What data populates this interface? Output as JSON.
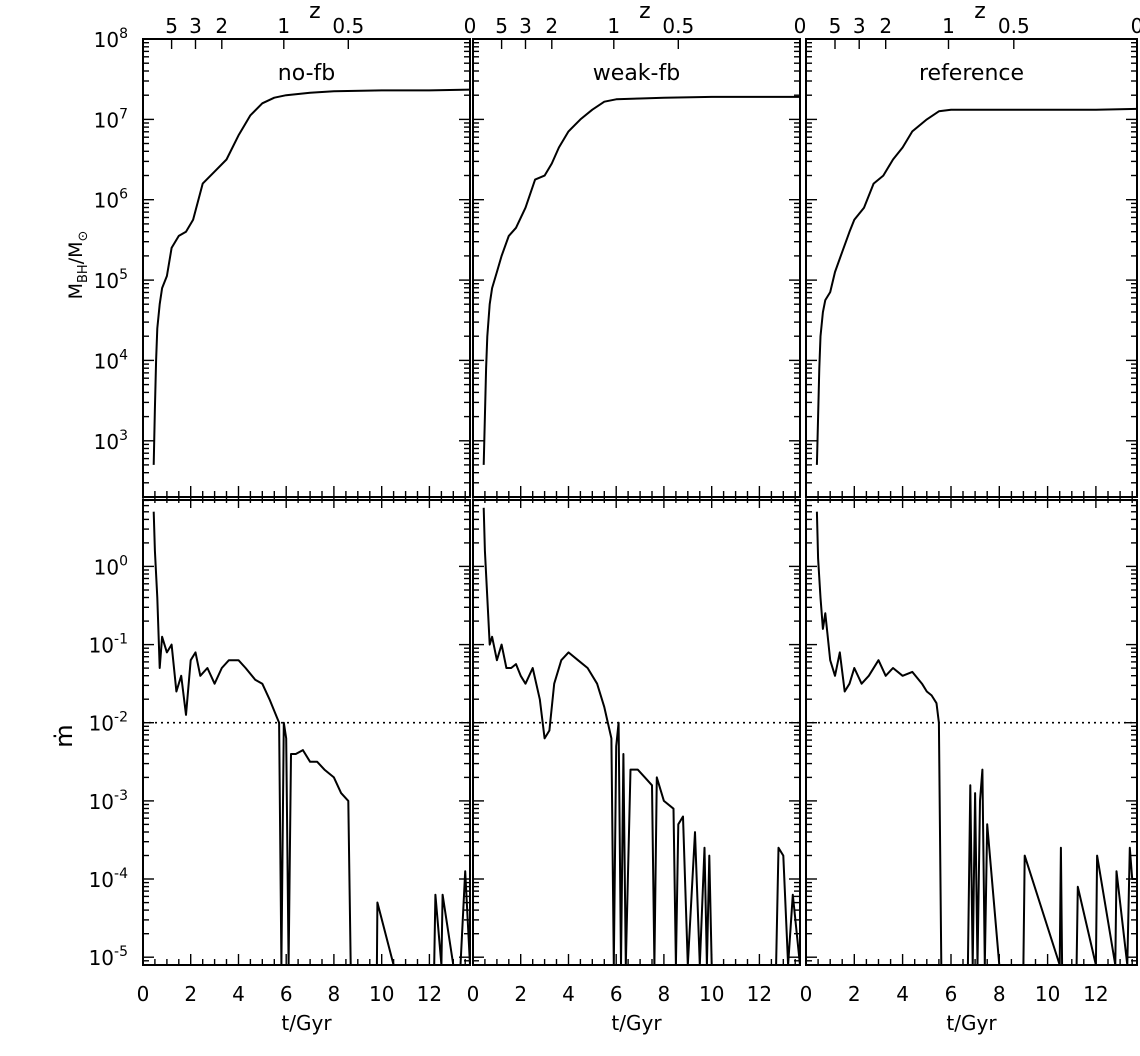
{
  "chart_data": {
    "type": "line",
    "panels": [
      {
        "title": "no-fb"
      },
      {
        "title": "weak-fb"
      },
      {
        "title": "reference"
      }
    ],
    "x_axis": {
      "label": "t/Gyr",
      "range": [
        0,
        13.7
      ],
      "tick_labels": [
        "0",
        "2",
        "4",
        "6",
        "8",
        "10",
        "12"
      ]
    },
    "top_axis": {
      "label": "z",
      "tick_labels": [
        "5",
        "3",
        "2",
        "1",
        "0.5",
        "0"
      ]
    },
    "rows": [
      {
        "ylabel_base": "M",
        "ylabel_sub": "BH",
        "ylabel_mid": "/M",
        "ylabel_sub2": "⊙",
        "yscale": "log",
        "ylim_log10": [
          2.3,
          8
        ],
        "tick_label_base": "10",
        "tick_exponents": [
          "3",
          "4",
          "5",
          "6",
          "7",
          "8"
        ],
        "series": [
          {
            "x": [
              0.45,
              0.5,
              0.55,
              0.6,
              0.7,
              0.8,
              1.0,
              1.2,
              1.5,
              1.8,
              2.1,
              2.5,
              3.0,
              3.5,
              4.0,
              4.5,
              5.0,
              5.5,
              6.0,
              7.0,
              8.0,
              10.0,
              12.0,
              13.7
            ],
            "y": [
              2.7,
              3.4,
              4.0,
              4.4,
              4.7,
              4.9,
              5.05,
              5.4,
              5.55,
              5.6,
              5.75,
              6.2,
              6.35,
              6.5,
              6.8,
              7.05,
              7.2,
              7.27,
              7.3,
              7.33,
              7.35,
              7.36,
              7.36,
              7.37
            ]
          },
          {
            "x": [
              0.45,
              0.5,
              0.55,
              0.6,
              0.7,
              0.8,
              1.0,
              1.2,
              1.5,
              1.8,
              2.2,
              2.6,
              3.0,
              3.3,
              3.6,
              4.0,
              4.5,
              5.0,
              5.5,
              6.0,
              7.0,
              8.0,
              10.0,
              12.0,
              13.7
            ],
            "y": [
              2.7,
              3.3,
              3.9,
              4.3,
              4.7,
              4.9,
              5.1,
              5.3,
              5.55,
              5.65,
              5.9,
              6.25,
              6.3,
              6.45,
              6.65,
              6.85,
              7.0,
              7.12,
              7.22,
              7.25,
              7.26,
              7.27,
              7.28,
              7.28,
              7.28
            ]
          },
          {
            "x": [
              0.45,
              0.5,
              0.55,
              0.6,
              0.7,
              0.8,
              1.0,
              1.2,
              1.5,
              1.8,
              2.0,
              2.4,
              2.8,
              3.2,
              3.6,
              4.0,
              4.4,
              5.0,
              5.5,
              6.0,
              8.0,
              10.0,
              12.0,
              13.7
            ],
            "y": [
              2.7,
              3.3,
              3.9,
              4.3,
              4.6,
              4.75,
              4.85,
              5.1,
              5.35,
              5.6,
              5.75,
              5.9,
              6.2,
              6.3,
              6.5,
              6.65,
              6.85,
              7.0,
              7.1,
              7.12,
              7.12,
              7.12,
              7.12,
              7.13
            ]
          }
        ]
      },
      {
        "ylabel": "ṁ",
        "yscale": "log",
        "ylim_log10": [
          -5.1,
          0.85
        ],
        "threshold_log10": -2,
        "tick_label_base": "10",
        "tick_exponents": [
          "-5",
          "-4",
          "-3",
          "-2",
          "-1",
          "0"
        ],
        "series": [
          {
            "x": [
              0.45,
              0.5,
              0.6,
              0.7,
              0.8,
              1.0,
              1.2,
              1.4,
              1.6,
              1.8,
              2.0,
              2.2,
              2.4,
              2.7,
              3.0,
              3.3,
              3.6,
              4.0,
              4.3,
              4.7,
              5.0,
              5.3,
              5.5,
              5.7,
              5.8,
              5.9,
              6.0,
              6.1,
              6.2,
              6.4,
              6.7,
              7.0,
              7.3,
              7.6,
              8.0,
              8.3,
              8.6,
              8.7,
              9.0,
              9.5,
              9.8,
              9.82,
              10.5,
              12.2,
              12.25,
              12.5,
              12.55,
              13.0,
              13.3,
              13.5,
              13.7
            ],
            "y": [
              0.7,
              0.2,
              -0.4,
              -1.3,
              -0.9,
              -1.1,
              -1.0,
              -1.6,
              -1.4,
              -1.9,
              -1.2,
              -1.1,
              -1.4,
              -1.3,
              -1.5,
              -1.3,
              -1.2,
              -1.2,
              -1.3,
              -1.45,
              -1.5,
              -1.7,
              -1.85,
              -2.0,
              -5.1,
              -2.0,
              -2.2,
              -5.1,
              -2.4,
              -2.4,
              -2.35,
              -2.5,
              -2.5,
              -2.6,
              -2.7,
              -2.9,
              -3.0,
              -5.1,
              -5.1,
              -5.1,
              -5.1,
              -4.3,
              -5.1,
              -5.1,
              -4.2,
              -5.1,
              -4.2,
              -5.1,
              -5.1,
              -3.9,
              -5.1
            ]
          },
          {
            "x": [
              0.45,
              0.5,
              0.6,
              0.7,
              0.8,
              1.0,
              1.2,
              1.4,
              1.6,
              1.8,
              2.0,
              2.2,
              2.5,
              2.8,
              3.0,
              3.2,
              3.4,
              3.7,
              4.0,
              4.4,
              4.8,
              5.2,
              5.5,
              5.8,
              5.9,
              6.0,
              6.1,
              6.2,
              6.3,
              6.4,
              6.6,
              6.9,
              7.2,
              7.5,
              7.6,
              7.7,
              8.0,
              8.4,
              8.5,
              8.6,
              8.8,
              9.0,
              9.3,
              9.5,
              9.7,
              9.8,
              9.9,
              10.0,
              11.0,
              12.7,
              12.8,
              13.0,
              13.2,
              13.4,
              13.7
            ],
            "y": [
              0.75,
              0.2,
              -0.4,
              -1.0,
              -0.9,
              -1.2,
              -1.0,
              -1.3,
              -1.3,
              -1.25,
              -1.4,
              -1.5,
              -1.3,
              -1.7,
              -2.2,
              -2.1,
              -1.5,
              -1.2,
              -1.1,
              -1.2,
              -1.3,
              -1.5,
              -1.8,
              -2.2,
              -5.1,
              -2.3,
              -2.0,
              -5.1,
              -2.4,
              -5.1,
              -2.6,
              -2.6,
              -2.7,
              -2.8,
              -5.1,
              -2.7,
              -3.0,
              -3.1,
              -5.1,
              -3.3,
              -3.2,
              -5.1,
              -3.4,
              -5.1,
              -3.6,
              -5.1,
              -3.7,
              -5.1,
              -5.1,
              -5.1,
              -3.6,
              -3.7,
              -5.1,
              -4.2,
              -5.1
            ]
          },
          {
            "x": [
              0.45,
              0.5,
              0.6,
              0.7,
              0.8,
              1.0,
              1.2,
              1.4,
              1.6,
              1.8,
              2.0,
              2.3,
              2.6,
              3.0,
              3.3,
              3.6,
              4.0,
              4.4,
              4.8,
              5.0,
              5.2,
              5.4,
              5.5,
              5.6,
              6.0,
              6.7,
              6.8,
              6.9,
              7.0,
              7.1,
              7.2,
              7.3,
              7.4,
              7.5,
              8.0,
              9.0,
              9.05,
              10.5,
              10.55,
              10.6,
              11.2,
              11.25,
              12.0,
              12.05,
              12.8,
              12.85,
              13.3,
              13.4,
              13.5,
              13.7
            ],
            "y": [
              0.7,
              0.1,
              -0.4,
              -0.8,
              -0.6,
              -1.2,
              -1.4,
              -1.1,
              -1.6,
              -1.5,
              -1.3,
              -1.5,
              -1.4,
              -1.2,
              -1.4,
              -1.3,
              -1.4,
              -1.35,
              -1.5,
              -1.6,
              -1.65,
              -1.75,
              -2.0,
              -5.1,
              -5.1,
              -5.1,
              -2.8,
              -5.1,
              -2.9,
              -5.1,
              -3.0,
              -2.6,
              -5.1,
              -3.3,
              -5.1,
              -5.1,
              -3.7,
              -5.1,
              -3.6,
              -5.1,
              -5.1,
              -4.1,
              -5.1,
              -3.7,
              -5.1,
              -3.9,
              -5.1,
              -3.6,
              -4.0,
              -4.0
            ]
          }
        ]
      }
    ],
    "grid": false,
    "legend": "none"
  }
}
